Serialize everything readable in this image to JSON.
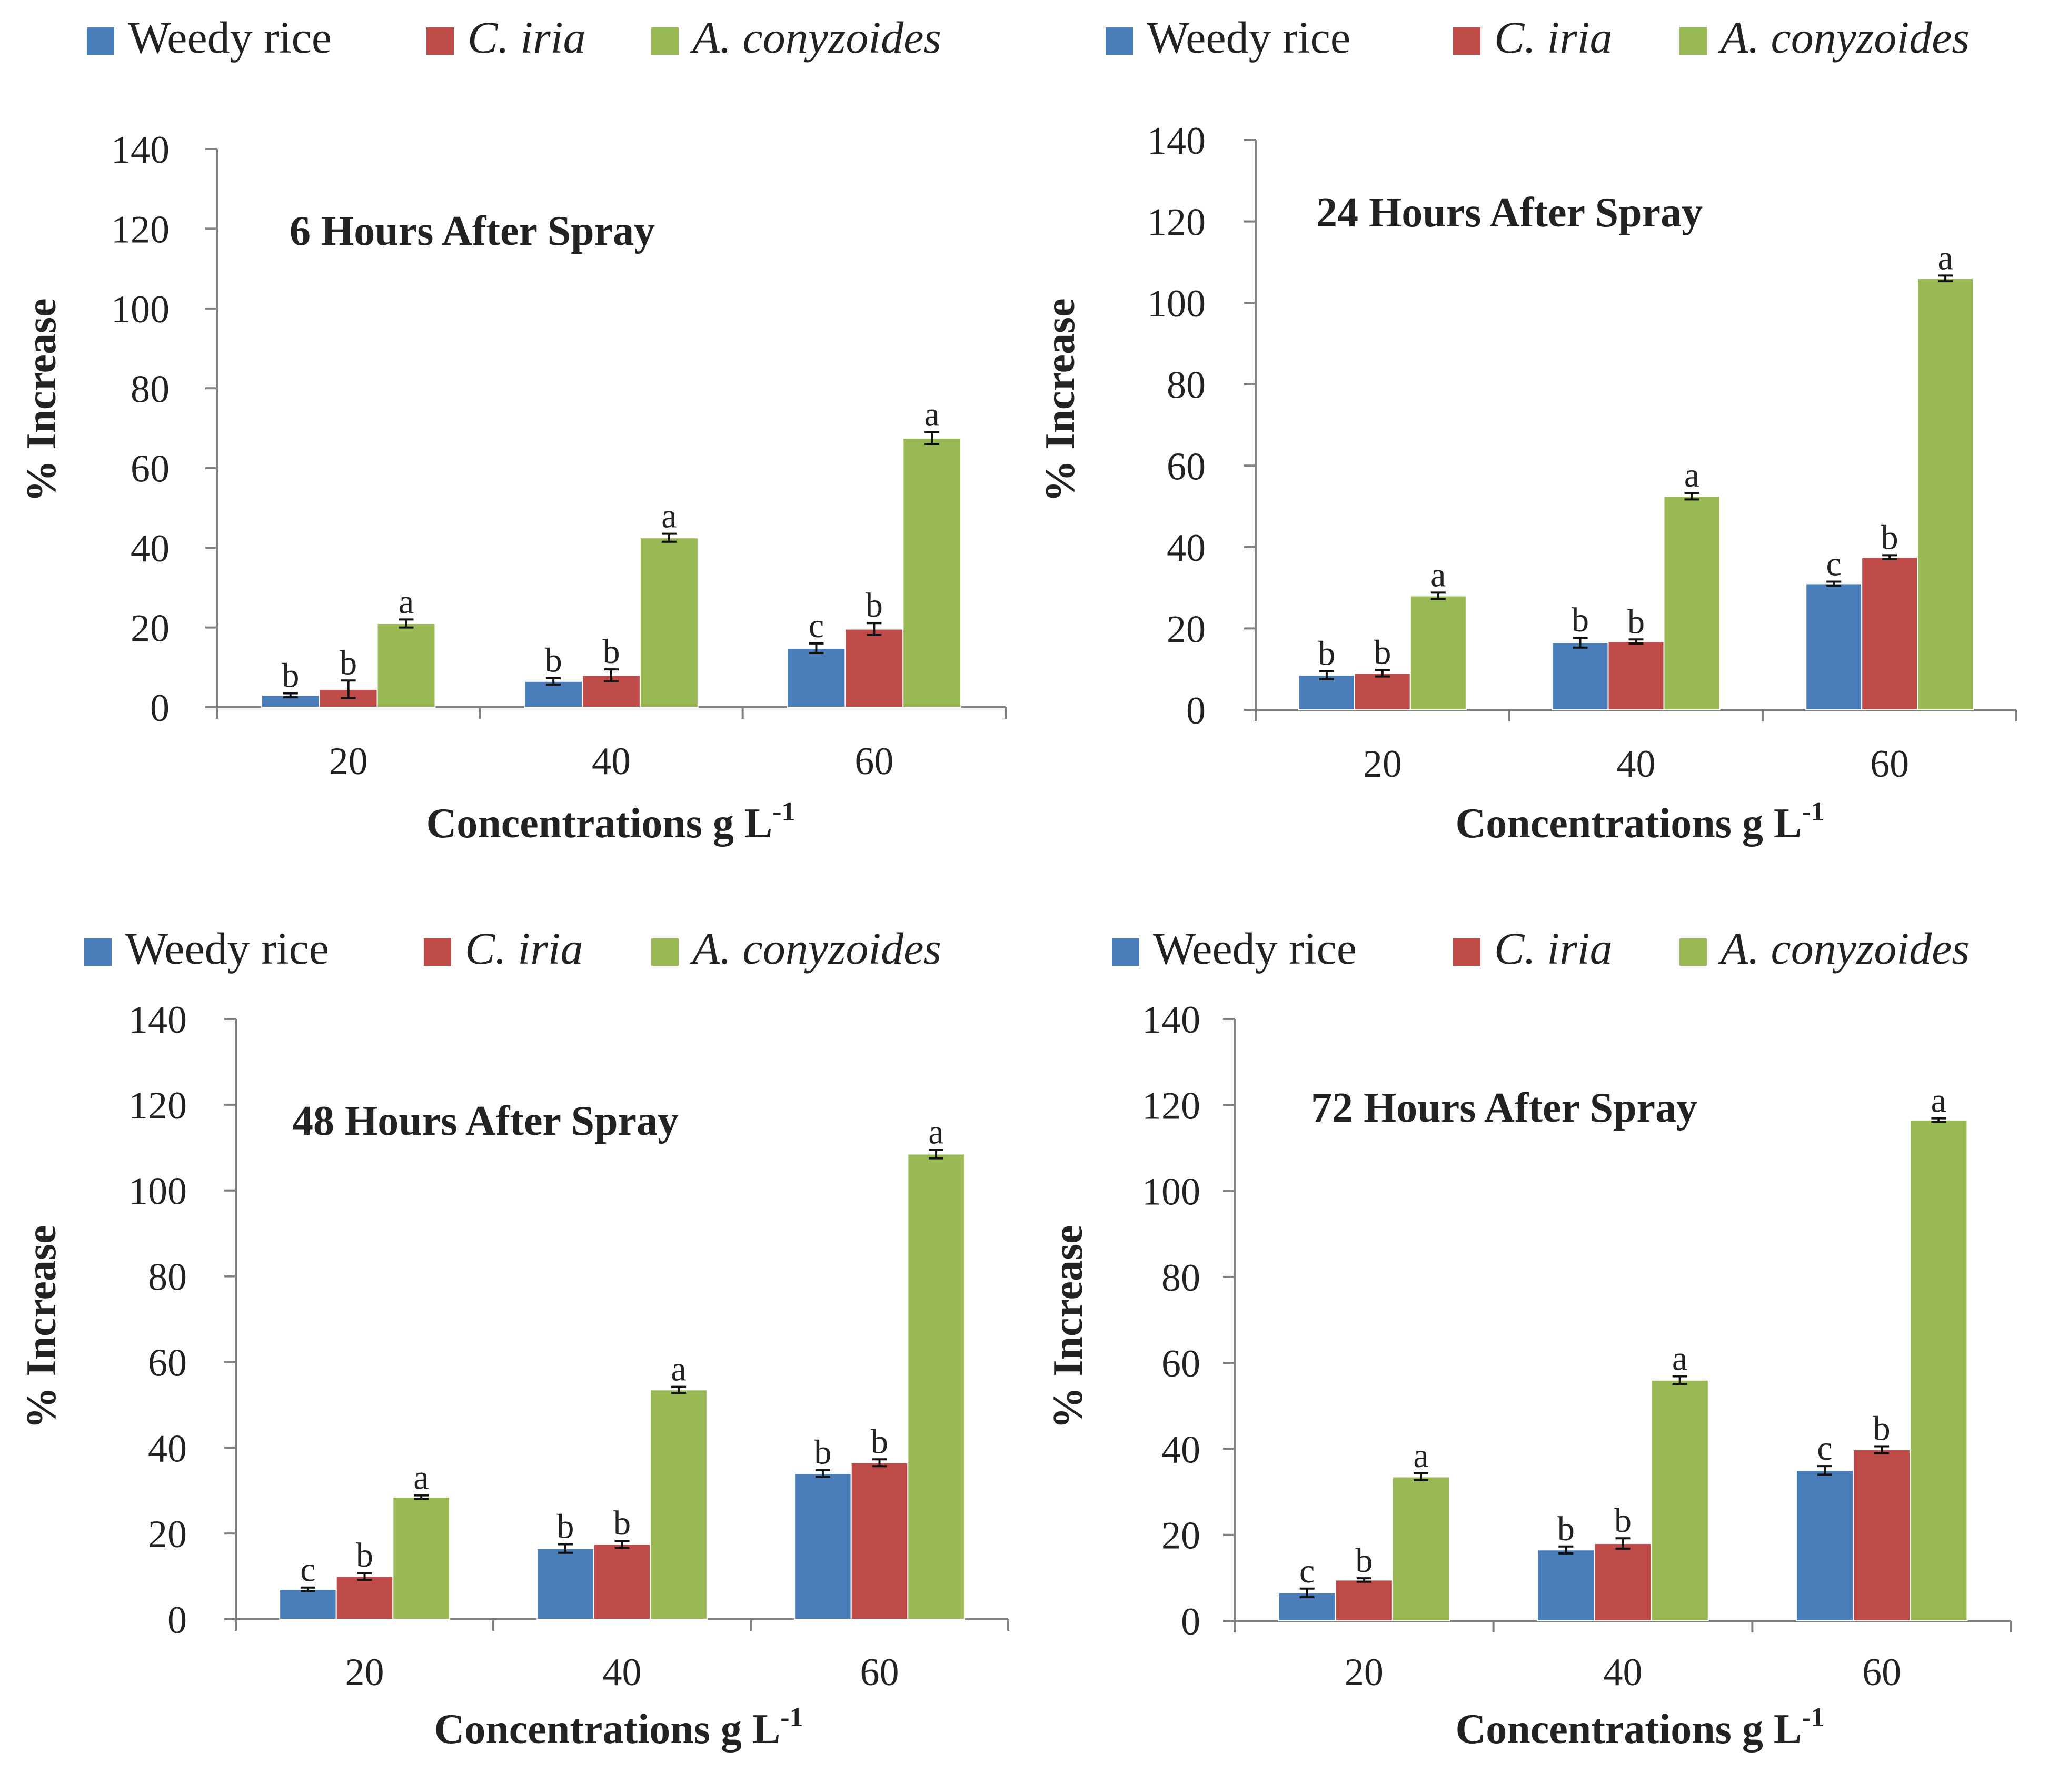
{
  "figure": {
    "series_colors": {
      "Weedy rice": "#4a7ebb",
      "C. iria": "#be4b48",
      "A. conyzoides": "#98b954"
    }
  },
  "chart_data": [
    {
      "type": "bar",
      "title": "6 Hours After Spray",
      "xlabel": "Concentrations g L",
      "xlabel_sup": "-1",
      "ylabel": "% Increase",
      "ylim": [
        0,
        140
      ],
      "yticks": [
        "0",
        "20",
        "40",
        "60",
        "80",
        "100",
        "120",
        "140"
      ],
      "categories": [
        "20",
        "40",
        "60"
      ],
      "legend": {
        "placement": "top",
        "items": [
          "Weedy rice",
          "C. iria",
          "A. conyzoides"
        ],
        "italic": [
          false,
          true,
          true
        ]
      },
      "series": [
        {
          "name": "Weedy rice",
          "values": [
            3,
            6.5,
            14.8
          ],
          "errors": [
            0.5,
            0.8,
            1.2
          ],
          "labels": [
            "b",
            "b",
            "c"
          ]
        },
        {
          "name": "C. iria",
          "values": [
            4.5,
            8,
            19.6
          ],
          "errors": [
            2.2,
            1.5,
            1.5
          ],
          "labels": [
            "b",
            "b",
            "b"
          ]
        },
        {
          "name": "A. conyzoides",
          "values": [
            21,
            42.5,
            67.5
          ],
          "errors": [
            1,
            1,
            1.5
          ],
          "labels": [
            "a",
            "a",
            "a"
          ]
        }
      ]
    },
    {
      "type": "bar",
      "title": "24 Hours After Spray",
      "xlabel": "Concentrations g L",
      "xlabel_sup": "-1",
      "ylabel": "% Increase",
      "ylim": [
        0,
        140
      ],
      "yticks": [
        "0",
        "20",
        "40",
        "60",
        "80",
        "100",
        "120",
        "140"
      ],
      "categories": [
        "20",
        "40",
        "60"
      ],
      "legend": {
        "placement": "top",
        "items": [
          "Weedy rice",
          "C. iria",
          "A. conyzoides"
        ],
        "italic": [
          false,
          true,
          true
        ]
      },
      "series": [
        {
          "name": "Weedy rice",
          "values": [
            8.5,
            16.5,
            31
          ],
          "errors": [
            1,
            1.2,
            0.5
          ],
          "labels": [
            "b",
            "b",
            "c"
          ]
        },
        {
          "name": "C. iria",
          "values": [
            9,
            16.8,
            37.5
          ],
          "errors": [
            0.8,
            0.5,
            0.5
          ],
          "labels": [
            "b",
            "b",
            "b"
          ]
        },
        {
          "name": "A. conyzoides",
          "values": [
            28,
            52.5,
            106
          ],
          "errors": [
            0.8,
            0.8,
            0.7
          ],
          "labels": [
            "a",
            "a",
            "a"
          ]
        }
      ]
    },
    {
      "type": "bar",
      "title": "48 Hours After Spray",
      "xlabel": "Concentrations g L",
      "xlabel_sup": "-1",
      "ylabel": "% Increase",
      "ylim": [
        0,
        140
      ],
      "yticks": [
        "0",
        "20",
        "40",
        "60",
        "80",
        "100",
        "120",
        "140"
      ],
      "categories": [
        "20",
        "40",
        "60"
      ],
      "legend": {
        "placement": "top",
        "items": [
          "Weedy rice",
          "C. iria",
          "A. conyzoides"
        ],
        "italic": [
          false,
          true,
          true
        ]
      },
      "series": [
        {
          "name": "Weedy rice",
          "values": [
            7,
            16.5,
            34
          ],
          "errors": [
            0.4,
            1,
            0.8
          ],
          "labels": [
            "c",
            "b",
            "b"
          ]
        },
        {
          "name": "C. iria",
          "values": [
            10,
            17.5,
            36.5
          ],
          "errors": [
            0.8,
            0.8,
            0.8
          ],
          "labels": [
            "b",
            "b",
            "b"
          ]
        },
        {
          "name": "A. conyzoides",
          "values": [
            28.5,
            53.5,
            108.5
          ],
          "errors": [
            0.4,
            0.7,
            1
          ],
          "labels": [
            "a",
            "a",
            "a"
          ]
        }
      ]
    },
    {
      "type": "bar",
      "title": "72 Hours After Spray",
      "xlabel": "Concentrations g L",
      "xlabel_sup": "-1",
      "ylabel": "% Increase",
      "ylim": [
        0,
        140
      ],
      "yticks": [
        "0",
        "20",
        "40",
        "60",
        "80",
        "100",
        "120",
        "140"
      ],
      "categories": [
        "20",
        "40",
        "60"
      ],
      "legend": {
        "placement": "top",
        "items": [
          "Weedy rice",
          "C. iria",
          "A. conyzoides"
        ],
        "italic": [
          false,
          true,
          true
        ]
      },
      "series": [
        {
          "name": "Weedy rice",
          "values": [
            6.5,
            16.5,
            35
          ],
          "errors": [
            1,
            0.8,
            1
          ],
          "labels": [
            "c",
            "b",
            "c"
          ]
        },
        {
          "name": "C. iria",
          "values": [
            9.5,
            18,
            39.8
          ],
          "errors": [
            0.4,
            1.2,
            0.8
          ],
          "labels": [
            "b",
            "b",
            "b"
          ]
        },
        {
          "name": "A. conyzoides",
          "values": [
            33.5,
            56,
            116.5
          ],
          "errors": [
            0.8,
            0.9,
            0.4
          ],
          "labels": [
            "a",
            "a",
            "a"
          ]
        }
      ]
    }
  ]
}
